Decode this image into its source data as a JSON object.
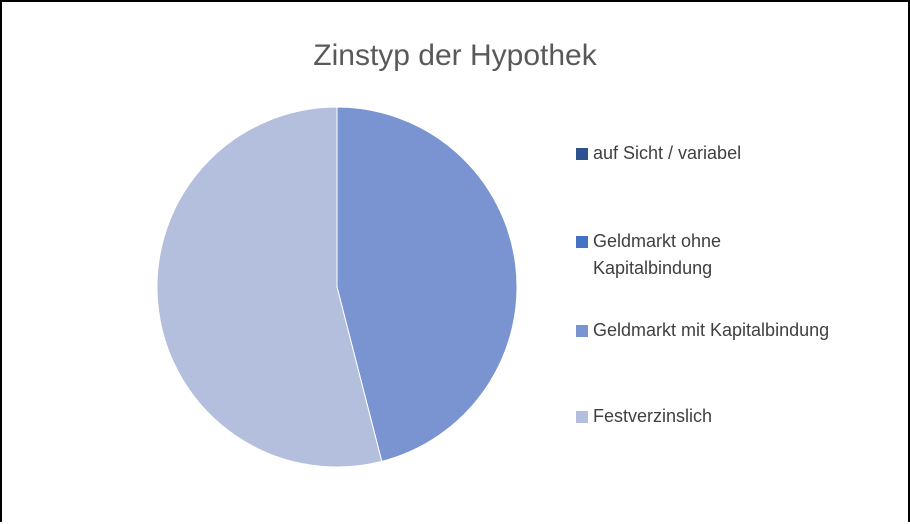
{
  "chart_data": {
    "type": "pie",
    "title": "Zinstyp der Hypothek",
    "categories": [
      "auf Sicht / variabel",
      "Geldmarkt ohne Kapitalbindung",
      "Geldmarkt mit Kapitalbindung",
      "Festverzinslich"
    ],
    "values": [
      0,
      0,
      46,
      54
    ],
    "colors": [
      "#2e528f",
      "#4472c4",
      "#7a93d1",
      "#b4bfde"
    ],
    "legend": "right"
  }
}
